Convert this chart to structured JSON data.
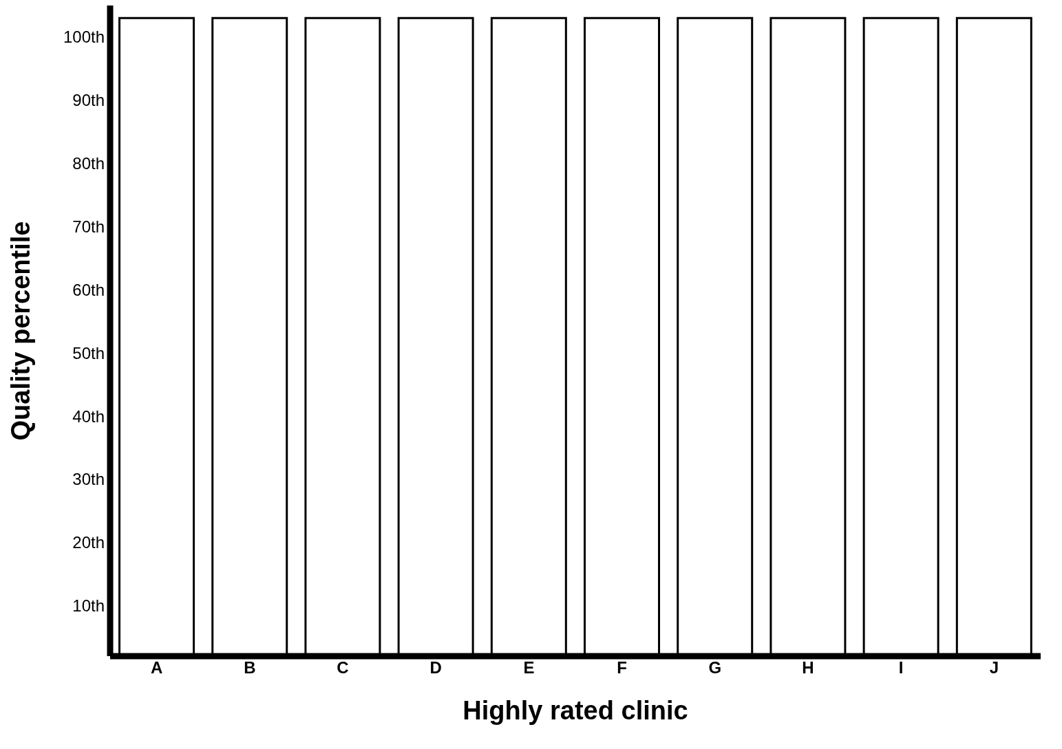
{
  "chart_data": {
    "type": "bar",
    "xlabel": "Highly rated clinic",
    "ylabel": "Quality percentile",
    "categories": [
      "A",
      "B",
      "C",
      "D",
      "E",
      "F",
      "G",
      "H",
      "I",
      "J"
    ],
    "values": [
      103,
      103,
      103,
      103,
      103,
      103,
      103,
      103,
      103,
      103
    ],
    "color": "#ffffff",
    "ylim": [
      2,
      105
    ],
    "yticks": [
      {
        "value": 10,
        "label": "10th"
      },
      {
        "value": 20,
        "label": "20th"
      },
      {
        "value": 30,
        "label": "30th"
      },
      {
        "value": 40,
        "label": "40th"
      },
      {
        "value": 50,
        "label": "50th"
      },
      {
        "value": 60,
        "label": "60th"
      },
      {
        "value": 70,
        "label": "70th"
      },
      {
        "value": 80,
        "label": "80th"
      },
      {
        "value": 90,
        "label": "90th"
      },
      {
        "value": 100,
        "label": "100th"
      }
    ],
    "grid": false,
    "legend": false
  }
}
